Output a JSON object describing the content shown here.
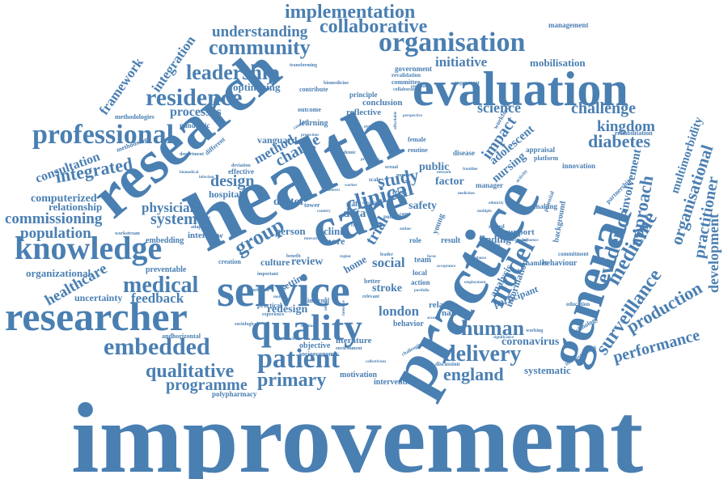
{
  "color": "#4a7fb2",
  "words": [
    "improvement",
    "health",
    "research",
    "practice",
    "care",
    "general",
    "evaluation",
    "service",
    "researcher",
    "knowledge",
    "quality",
    "patient",
    "organisation",
    "professional",
    "residence",
    "leadership",
    "community",
    "collaborative",
    "implementation",
    "understanding",
    "integration",
    "framework",
    "clinical",
    "model",
    "medical",
    "embedded",
    "qualitative",
    "programme",
    "primary",
    "delivery",
    "england",
    "human",
    "medicine",
    "evidence",
    "approach",
    "surveillance",
    "production",
    "performance",
    "practitioner",
    "development",
    "organisational",
    "multimorbidity",
    "diabetes",
    "kingdom",
    "challenge",
    "science",
    "initiative",
    "mobilisation",
    "management",
    "processes",
    "consultation",
    "integrated",
    "computerized",
    "relationship",
    "commissioning",
    "population",
    "organizational",
    "healthcare",
    "uncertainty",
    "feedback",
    "system",
    "physician",
    "design",
    "method",
    "change",
    "group",
    "study",
    "impact",
    "adolescent",
    "nursing",
    "london",
    "social",
    "stroke",
    "redesign",
    "review",
    "culture",
    "setting",
    "home",
    "clinic",
    "more",
    "person",
    "data",
    "trial",
    "safety",
    "public",
    "factor",
    "finding",
    "support",
    "participant",
    "analysis",
    "information",
    "coronavirus",
    "systematic",
    "national",
    "relation",
    "behavior",
    "literature",
    "objective",
    "motivation",
    "intervention",
    "polypharmacy",
    "embedding",
    "preventable",
    "vanguard",
    "doctor",
    "hospital",
    "interview",
    "optimising",
    "learning",
    "conclusion",
    "reflective",
    "government",
    "principle",
    "committee",
    "revalidation",
    "contribute",
    "outcome",
    "pandemic",
    "methodologies",
    "methodology",
    "rehabilitation",
    "appraisal",
    "platform",
    "innovation",
    "partnership",
    "background",
    "commitment",
    "behaviour",
    "hamlet",
    "technology",
    "routine",
    "female",
    "disease",
    "biomedicine",
    "transforming",
    "workforce",
    "effective",
    "level",
    "staff",
    "result",
    "role",
    "local",
    "action",
    "team",
    "engagement",
    "department",
    "sociological",
    "workstream",
    "creation",
    "important",
    "workload",
    "practical",
    "experience",
    "internal",
    "discussion",
    "challenging",
    "collaboration",
    "adaptation",
    "different",
    "biomedical",
    "deviation",
    "academic",
    "activity",
    "potential",
    "influence",
    "syndrome",
    "protection",
    "complex",
    "perspective",
    "ethnicity",
    "frontline",
    "record",
    "reflection",
    "increasing",
    "significance",
    "involvement",
    "better",
    "portfolio",
    "environment",
    "socioeconomic",
    "education",
    "interprofessional",
    "working",
    "account",
    "making",
    "manager",
    "policy",
    "case",
    "tower",
    "country",
    "scale",
    "number",
    "sexual",
    "network",
    "young",
    "affordable",
    "prevention",
    "worker",
    "specialist",
    "cost",
    "region",
    "leader",
    "benefit",
    "author",
    "focus",
    "acceptance",
    "relevant",
    "attitude",
    "intensive",
    "treatment",
    "mother",
    "infection",
    "dementia",
    "interaction",
    "interest",
    "medicines",
    "multiple",
    "employment",
    "guidance",
    "research",
    "andhorizontal",
    "collectivism",
    "program"
  ]
}
